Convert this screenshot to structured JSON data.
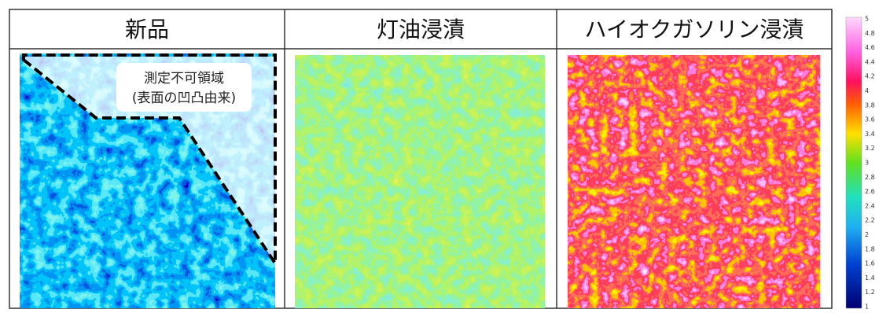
{
  "headers": [
    "新品",
    "灯油浸漬",
    "ハイオクガソリン浸漬"
  ],
  "annotation": [
    "測定不可領域",
    "(表面の凹凸由来)"
  ],
  "color_scale": {
    "ticks": [
      5,
      4.8,
      4.6,
      4.4,
      4.2,
      4,
      3.8,
      3.6,
      3.4,
      3.2,
      3,
      2.8,
      2.6,
      2.4,
      2.2,
      2,
      1.8,
      1.6,
      1.4,
      1.2,
      1
    ]
  }
}
